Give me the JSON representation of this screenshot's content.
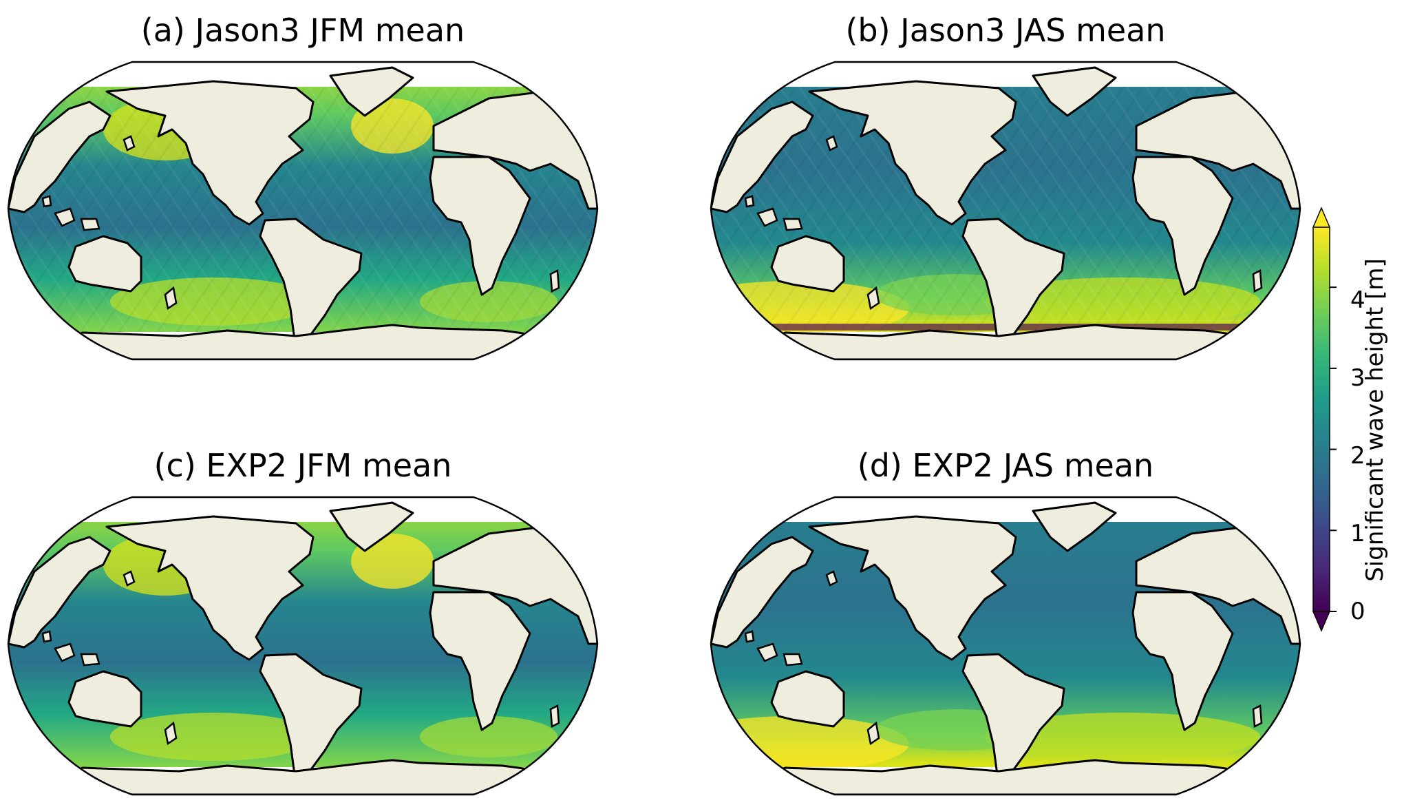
{
  "panels": [
    {
      "id": "a",
      "title": "(a) Jason3 JFM mean",
      "season": "JFM",
      "source": "Jason3"
    },
    {
      "id": "b",
      "title": "(b) Jason3 JAS mean",
      "season": "JAS",
      "source": "Jason3"
    },
    {
      "id": "c",
      "title": "(c) EXP2 JFM mean",
      "season": "JFM",
      "source": "EXP2"
    },
    {
      "id": "d",
      "title": "(d) EXP2 JAS mean",
      "season": "JAS",
      "source": "EXP2"
    }
  ],
  "colorbar": {
    "label": "Significant wave height [m]",
    "ticks": [
      "0",
      "1",
      "2",
      "3",
      "4"
    ],
    "range": [
      0,
      4.8
    ],
    "extend": "both",
    "colormap": "viridis"
  },
  "colors": {
    "land": "#efedde",
    "coast": "#000000",
    "viridis_low": "#440154",
    "viridis_mid": "#21918c",
    "viridis_high": "#fde725"
  }
}
